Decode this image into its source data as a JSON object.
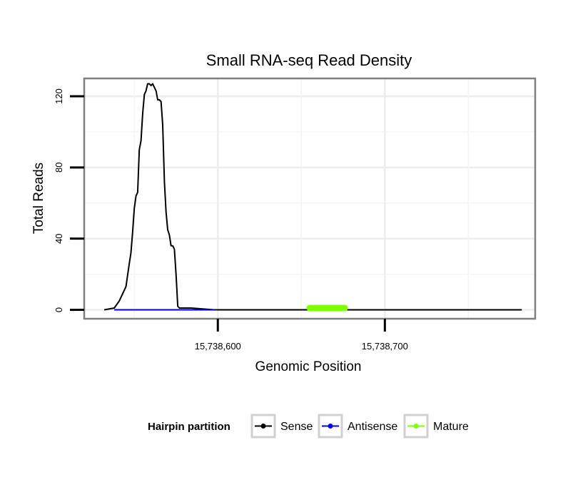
{
  "chart_data": {
    "type": "line",
    "title": "Small RNA-seq Read Density",
    "xlabel": "Genomic Position",
    "ylabel": "Total Reads",
    "xlim": [
      15738520,
      15738790
    ],
    "ylim": [
      -5,
      130
    ],
    "x_ticks": [
      15738600,
      15738700
    ],
    "x_tick_labels": [
      "15,738,600",
      "15,738,700"
    ],
    "y_ticks": [
      0,
      40,
      80,
      120
    ],
    "y_tick_labels": [
      "0",
      "40",
      "80",
      "120"
    ],
    "grid": true,
    "legend": {
      "title": "Hairpin partition",
      "position": "bottom",
      "entries": [
        "Sense",
        "Antisense",
        "Mature"
      ]
    },
    "series": [
      {
        "name": "Sense",
        "color": "#000000",
        "x": [
          15738532,
          15738538,
          15738541,
          15738543,
          15738545,
          15738547,
          15738548,
          15738549,
          15738550,
          15738551,
          15738552,
          15738553,
          15738554,
          15738555,
          15738556,
          15738557,
          15738558,
          15738559,
          15738560,
          15738561,
          15738562,
          15738563,
          15738564,
          15738565,
          15738566,
          15738567,
          15738568,
          15738569,
          15738570,
          15738571,
          15738572,
          15738573,
          15738574,
          15738575,
          15738576,
          15738577,
          15738578,
          15738580,
          15738581,
          15738582,
          15738583,
          15738584,
          15738598,
          15738782
        ],
        "y": [
          0,
          1,
          5,
          9,
          13,
          26,
          32,
          44,
          57,
          64,
          66,
          90,
          95,
          110,
          121,
          123,
          127,
          127,
          126,
          127,
          125,
          123,
          118,
          118,
          117,
          104,
          72,
          55,
          45,
          42,
          36,
          36,
          34,
          20,
          2,
          1,
          1,
          1,
          1,
          1,
          1,
          1,
          0,
          0
        ]
      },
      {
        "name": "Antisense",
        "color": "#0000ff",
        "x": [
          15738538,
          15738598
        ],
        "y": [
          0,
          0
        ]
      },
      {
        "name": "Mature",
        "color": "#80ff00",
        "x": [
          15738655,
          15738676
        ],
        "y": [
          1,
          1
        ]
      }
    ]
  }
}
